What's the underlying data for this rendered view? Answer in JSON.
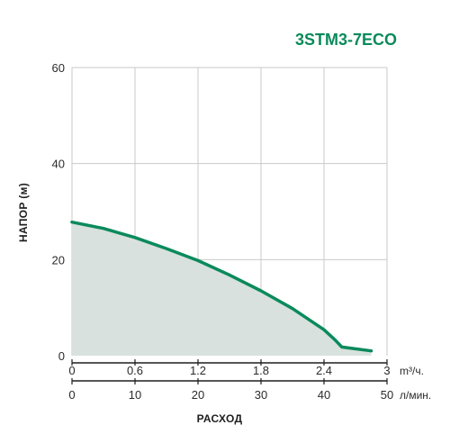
{
  "chart_data": {
    "type": "area",
    "title": "3STM3-7ECO",
    "ylabel": "НАПОР (м)",
    "xlabel": "РАСХОД",
    "ylim": [
      0,
      60
    ],
    "y_ticks": [
      "0",
      "20",
      "40",
      "60"
    ],
    "x_primary": {
      "unit": "m³/ч.",
      "lim": [
        0,
        3
      ],
      "ticks": [
        "0",
        "0.6",
        "1.2",
        "1.8",
        "2.4",
        "3"
      ]
    },
    "x_secondary": {
      "unit": "л/мин.",
      "lim": [
        0,
        50
      ],
      "ticks": [
        "0",
        "10",
        "20",
        "30",
        "40",
        "50"
      ]
    },
    "grid": true,
    "series": [
      {
        "x": [
          0,
          0.3,
          0.6,
          0.9,
          1.2,
          1.5,
          1.8,
          2.1,
          2.4,
          2.5,
          2.57,
          2.85
        ],
        "values": [
          27.8,
          26.5,
          24.6,
          22.3,
          19.8,
          16.8,
          13.5,
          9.8,
          5.4,
          3.4,
          1.8,
          1.0
        ]
      }
    ],
    "colors": {
      "line": "#0b8a5c",
      "fill": "#d8e1de",
      "grid": "#c9c9c9",
      "axis": "#1e1e1e",
      "title": "#0b8a5c"
    }
  }
}
